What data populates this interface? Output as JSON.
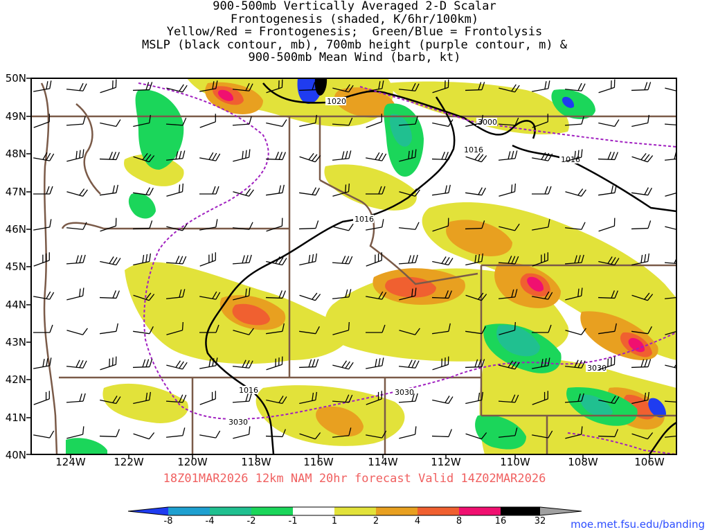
{
  "title_lines": [
    "900-500mb Vertically Averaged 2-D Scalar",
    "Frontogenesis (shaded, K/6hr/100km)",
    "Yellow/Red = Frontogenesis;  Green/Blue = Frontolysis",
    "MSLP (black contour, mb), 700mb height (purple contour, m) &",
    "900-500mb Mean Wind (barb, kt)"
  ],
  "valid_line": "18Z01MAR2026 12km NAM 20hr forecast Valid 14Z02MAR2026",
  "credit": "moe.met.fsu.edu/banding",
  "map": {
    "lat_labels": [
      "50N",
      "49N",
      "48N",
      "47N",
      "46N",
      "45N",
      "44N",
      "43N",
      "42N",
      "41N",
      "40N"
    ],
    "lon_labels": [
      "124W",
      "122W",
      "120W",
      "118W",
      "116W",
      "114W",
      "112W",
      "110W",
      "108W",
      "106W"
    ],
    "contour_labels": {
      "mslp": [
        "1020",
        "1016",
        "1016",
        "1016",
        "1016"
      ],
      "height": [
        "3000",
        "3030",
        "3030",
        "3030"
      ]
    },
    "colors": {
      "border": "#7a5a48",
      "mslp": "#000000",
      "height": "#a020c0"
    }
  },
  "colorbar": {
    "labels": [
      "-8",
      "-4",
      "-2",
      "-1",
      "1",
      "2",
      "4",
      "8",
      "16",
      "32"
    ],
    "colors": [
      "#1f3cf0",
      "#1fa0d0",
      "#20c090",
      "#1bd65a",
      "#ffffff",
      "#e2e23a",
      "#e8a020",
      "#f06030",
      "#f01070",
      "#000000",
      "#a0a0a0"
    ]
  }
}
